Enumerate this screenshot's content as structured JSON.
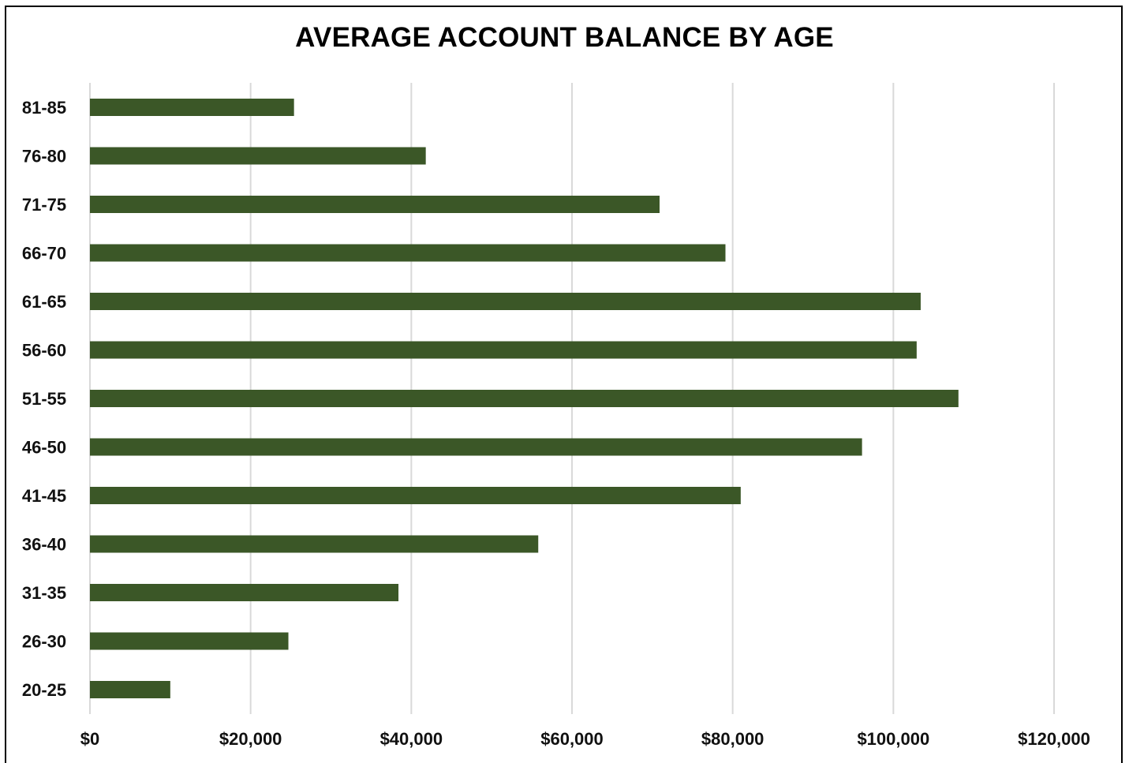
{
  "chart_data": {
    "type": "bar",
    "orientation": "horizontal",
    "title": "AVERAGE ACCOUNT BALANCE BY AGE",
    "xlabel": "",
    "ylabel": "",
    "categories": [
      "20-25",
      "26-30",
      "31-35",
      "36-40",
      "41-45",
      "46-50",
      "51-55",
      "56-60",
      "61-65",
      "66-70",
      "71-75",
      "76-80",
      "81-85"
    ],
    "values": [
      10000,
      24700,
      38400,
      55800,
      81000,
      96100,
      108100,
      102900,
      103400,
      79100,
      70900,
      41800,
      25400
    ],
    "xlim": [
      0,
      120000
    ],
    "ticks": [
      "$0",
      "$20,000",
      "$40,000",
      "$60,000",
      "$80,000",
      "$100,000",
      "$120,000"
    ],
    "grid": true,
    "bar_color": "#3b5727"
  }
}
